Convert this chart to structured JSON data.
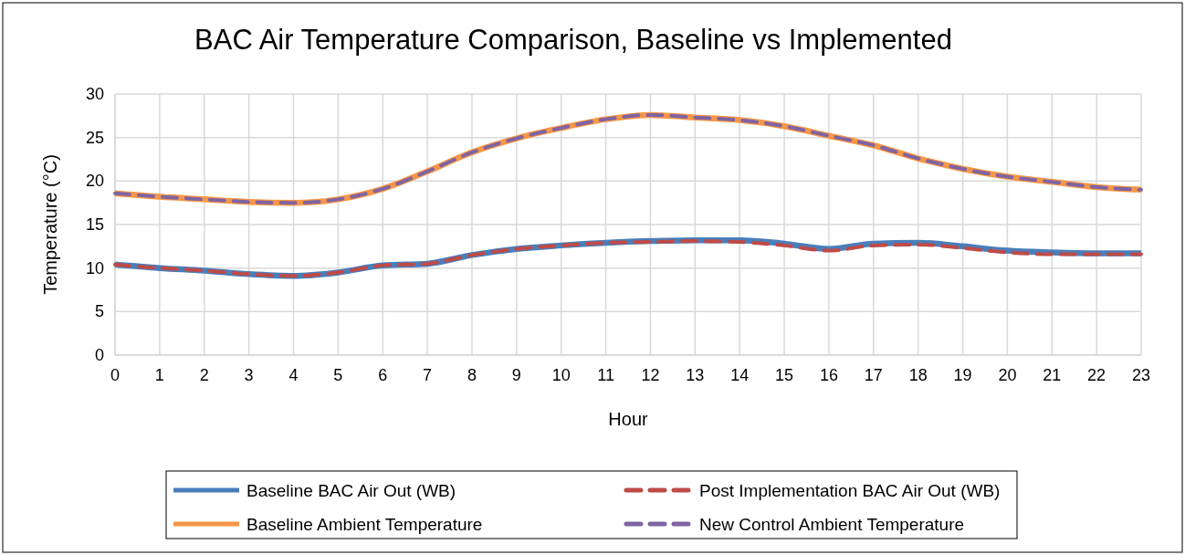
{
  "chart_data": {
    "type": "line",
    "title": "BAC Air Temperature Comparison, Baseline vs Implemented",
    "xlabel": "Hour",
    "ylabel": "Temperature (°C)",
    "x": [
      0,
      1,
      2,
      3,
      4,
      5,
      6,
      7,
      8,
      9,
      10,
      11,
      12,
      13,
      14,
      15,
      16,
      17,
      18,
      19,
      20,
      21,
      22,
      23
    ],
    "xlim": [
      0,
      23
    ],
    "xticks": [
      0,
      1,
      2,
      3,
      4,
      5,
      6,
      7,
      8,
      9,
      10,
      11,
      12,
      13,
      14,
      15,
      16,
      17,
      18,
      19,
      20,
      21,
      22,
      23
    ],
    "ylim": [
      0,
      30
    ],
    "yticks": [
      0,
      5,
      10,
      15,
      20,
      25,
      30
    ],
    "grid": true,
    "legend": "bottom",
    "marker": "none",
    "series": [
      {
        "name": "Baseline BAC Air Out (WB)",
        "color": "#4a7ebb",
        "line_style": "solid",
        "values": [
          10.4,
          10.0,
          9.7,
          9.3,
          9.1,
          9.5,
          10.3,
          10.5,
          11.5,
          12.2,
          12.6,
          12.9,
          13.1,
          13.2,
          13.2,
          12.8,
          12.2,
          12.8,
          12.9,
          12.5,
          12.0,
          11.8,
          11.7,
          11.7
        ]
      },
      {
        "name": "Post Implementation BAC Air Out (WB)",
        "color": "#be4b48",
        "line_style": "dashed",
        "values": [
          10.4,
          10.0,
          9.7,
          9.3,
          9.1,
          9.5,
          10.3,
          10.5,
          11.5,
          12.2,
          12.6,
          12.9,
          13.0,
          13.1,
          13.0,
          12.6,
          12.0,
          12.6,
          12.7,
          12.3,
          11.8,
          11.6,
          11.6,
          11.6
        ]
      },
      {
        "name": "Baseline Ambient Temperature",
        "color": "#f79646",
        "line_style": "solid",
        "values": [
          18.6,
          18.2,
          17.9,
          17.6,
          17.5,
          17.9,
          19.1,
          21.1,
          23.3,
          24.9,
          26.1,
          27.1,
          27.6,
          27.3,
          27.0,
          26.3,
          25.2,
          24.1,
          22.6,
          21.4,
          20.5,
          19.9,
          19.3,
          19.0
        ]
      },
      {
        "name": "New  Control Ambient Temperature",
        "color": "#8064a2",
        "line_style": "dashed",
        "values": [
          18.6,
          18.2,
          17.9,
          17.6,
          17.5,
          17.9,
          19.1,
          21.1,
          23.3,
          24.9,
          26.1,
          27.1,
          27.6,
          27.3,
          27.0,
          26.3,
          25.2,
          24.1,
          22.6,
          21.4,
          20.5,
          19.9,
          19.3,
          19.0
        ]
      }
    ]
  }
}
